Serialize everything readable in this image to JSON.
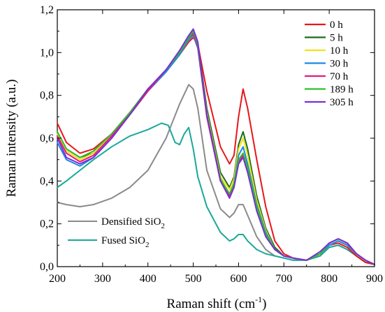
{
  "chart_data": {
    "type": "line",
    "xlabel": "Raman shift (cm",
    "xlabel_superscript": "-1",
    "xlabel_close": ")",
    "ylabel": "Raman intensity (a.u.)",
    "xlim": [
      200,
      900
    ],
    "ylim": [
      0,
      1.2
    ],
    "xticks": [
      200,
      300,
      400,
      500,
      600,
      700,
      800,
      900
    ],
    "yticks": [
      0,
      0.2,
      0.4,
      0.6,
      0.8,
      1.0,
      1.2
    ],
    "ytick_labels": [
      "0,0",
      "0,2",
      "0,4",
      "0,6",
      "0,8",
      "1,0",
      "1,2"
    ],
    "grid": false,
    "legend_position": "top-right",
    "series": [
      {
        "name": "0 h",
        "color": "#e8161b",
        "x": [
          200,
          220,
          250,
          280,
          320,
          360,
          400,
          440,
          470,
          490,
          500,
          510,
          530,
          560,
          580,
          590,
          600,
          610,
          620,
          640,
          660,
          680,
          700,
          720,
          750,
          780,
          800,
          820,
          840,
          860,
          880,
          900
        ],
        "y": [
          0.67,
          0.58,
          0.53,
          0.55,
          0.62,
          0.72,
          0.83,
          0.92,
          0.99,
          1.05,
          1.07,
          1.04,
          0.82,
          0.56,
          0.48,
          0.52,
          0.7,
          0.83,
          0.74,
          0.5,
          0.28,
          0.12,
          0.06,
          0.04,
          0.03,
          0.06,
          0.1,
          0.11,
          0.09,
          0.05,
          0.02,
          0.01
        ]
      },
      {
        "name": "5 h",
        "color": "#1b6b1e",
        "x": [
          200,
          220,
          250,
          280,
          320,
          360,
          400,
          440,
          470,
          490,
          500,
          510,
          530,
          560,
          580,
          590,
          600,
          610,
          620,
          640,
          660,
          680,
          700,
          720,
          750,
          780,
          800,
          820,
          840,
          860,
          880,
          900
        ],
        "y": [
          0.63,
          0.55,
          0.51,
          0.53,
          0.61,
          0.71,
          0.82,
          0.91,
          0.99,
          1.06,
          1.09,
          1.04,
          0.74,
          0.44,
          0.37,
          0.42,
          0.57,
          0.63,
          0.55,
          0.33,
          0.18,
          0.09,
          0.05,
          0.04,
          0.03,
          0.06,
          0.1,
          0.12,
          0.1,
          0.06,
          0.03,
          0.01
        ]
      },
      {
        "name": "10 h",
        "color": "#f2e21a",
        "x": [
          200,
          220,
          250,
          280,
          320,
          360,
          400,
          440,
          470,
          490,
          500,
          510,
          530,
          560,
          580,
          590,
          600,
          610,
          620,
          640,
          660,
          680,
          700,
          720,
          750,
          780,
          800,
          820,
          840,
          860,
          880,
          900
        ],
        "y": [
          0.62,
          0.54,
          0.5,
          0.53,
          0.61,
          0.71,
          0.82,
          0.91,
          0.99,
          1.06,
          1.08,
          1.03,
          0.72,
          0.42,
          0.36,
          0.41,
          0.55,
          0.6,
          0.52,
          0.31,
          0.17,
          0.08,
          0.05,
          0.04,
          0.03,
          0.06,
          0.1,
          0.12,
          0.1,
          0.06,
          0.03,
          0.01
        ]
      },
      {
        "name": "30 h",
        "color": "#1e88e5",
        "x": [
          200,
          220,
          250,
          280,
          320,
          360,
          400,
          440,
          470,
          490,
          500,
          510,
          530,
          560,
          580,
          590,
          600,
          610,
          620,
          640,
          660,
          680,
          700,
          720,
          750,
          780,
          800,
          820,
          840,
          860,
          880,
          900
        ],
        "y": [
          0.58,
          0.5,
          0.47,
          0.51,
          0.6,
          0.71,
          0.82,
          0.91,
          0.99,
          1.06,
          1.08,
          1.02,
          0.7,
          0.4,
          0.34,
          0.39,
          0.52,
          0.56,
          0.48,
          0.29,
          0.16,
          0.08,
          0.05,
          0.04,
          0.03,
          0.06,
          0.1,
          0.12,
          0.1,
          0.06,
          0.03,
          0.01
        ]
      },
      {
        "name": "70 h",
        "color": "#e6197b",
        "x": [
          200,
          220,
          250,
          280,
          320,
          360,
          400,
          440,
          470,
          490,
          500,
          510,
          530,
          560,
          580,
          590,
          600,
          610,
          620,
          640,
          660,
          680,
          700,
          720,
          750,
          780,
          800,
          820,
          840,
          860,
          880,
          900
        ],
        "y": [
          0.61,
          0.53,
          0.49,
          0.52,
          0.61,
          0.71,
          0.82,
          0.92,
          1.0,
          1.07,
          1.09,
          1.03,
          0.7,
          0.4,
          0.33,
          0.38,
          0.49,
          0.52,
          0.45,
          0.27,
          0.15,
          0.08,
          0.05,
          0.04,
          0.03,
          0.06,
          0.11,
          0.13,
          0.11,
          0.06,
          0.03,
          0.01
        ]
      },
      {
        "name": "189 h",
        "color": "#2fbf2f",
        "x": [
          200,
          220,
          250,
          280,
          320,
          360,
          400,
          440,
          470,
          490,
          500,
          510,
          530,
          560,
          580,
          590,
          600,
          610,
          620,
          640,
          660,
          680,
          700,
          720,
          750,
          780,
          800,
          820,
          840,
          860,
          880,
          900
        ],
        "y": [
          0.63,
          0.55,
          0.51,
          0.54,
          0.62,
          0.72,
          0.83,
          0.92,
          1.0,
          1.07,
          1.1,
          1.04,
          0.71,
          0.41,
          0.34,
          0.39,
          0.5,
          0.53,
          0.46,
          0.28,
          0.15,
          0.08,
          0.05,
          0.04,
          0.03,
          0.06,
          0.11,
          0.13,
          0.11,
          0.06,
          0.03,
          0.01
        ]
      },
      {
        "name": "305 h",
        "color": "#7b2fd4",
        "x": [
          200,
          220,
          250,
          280,
          320,
          360,
          400,
          440,
          470,
          490,
          500,
          510,
          530,
          560,
          580,
          590,
          600,
          610,
          620,
          640,
          660,
          680,
          700,
          720,
          750,
          780,
          800,
          820,
          840,
          860,
          880,
          900
        ],
        "y": [
          0.6,
          0.51,
          0.48,
          0.51,
          0.6,
          0.71,
          0.83,
          0.92,
          1.01,
          1.08,
          1.11,
          1.05,
          0.71,
          0.4,
          0.32,
          0.37,
          0.48,
          0.51,
          0.44,
          0.26,
          0.14,
          0.08,
          0.05,
          0.04,
          0.03,
          0.07,
          0.11,
          0.13,
          0.11,
          0.06,
          0.03,
          0.01
        ]
      },
      {
        "name": "Densified SiO",
        "color": "#8a8a8a",
        "x": [
          200,
          220,
          250,
          280,
          320,
          360,
          400,
          440,
          470,
          490,
          500,
          510,
          530,
          560,
          580,
          590,
          600,
          610,
          620,
          640,
          660,
          680,
          700,
          720,
          750,
          780,
          800,
          820,
          840,
          860,
          880,
          900
        ],
        "y": [
          0.3,
          0.29,
          0.28,
          0.29,
          0.32,
          0.37,
          0.45,
          0.6,
          0.76,
          0.85,
          0.83,
          0.74,
          0.45,
          0.27,
          0.23,
          0.25,
          0.29,
          0.29,
          0.24,
          0.14,
          0.08,
          0.05,
          0.04,
          0.03,
          0.03,
          0.05,
          0.09,
          0.1,
          0.08,
          0.05,
          0.02,
          0.01
        ]
      },
      {
        "name": "Fused SiO",
        "color": "#1aa89a",
        "x": [
          200,
          220,
          250,
          280,
          320,
          360,
          400,
          430,
          445,
          460,
          470,
          480,
          490,
          500,
          510,
          530,
          560,
          580,
          590,
          600,
          610,
          620,
          640,
          660,
          680,
          700,
          720,
          750,
          780,
          800,
          820,
          840,
          860,
          880,
          900
        ],
        "y": [
          0.37,
          0.4,
          0.45,
          0.5,
          0.56,
          0.61,
          0.64,
          0.67,
          0.66,
          0.58,
          0.57,
          0.62,
          0.65,
          0.55,
          0.42,
          0.28,
          0.16,
          0.12,
          0.13,
          0.15,
          0.15,
          0.12,
          0.08,
          0.06,
          0.05,
          0.04,
          0.03,
          0.03,
          0.05,
          0.09,
          0.1,
          0.08,
          0.05,
          0.02,
          0.01
        ]
      }
    ],
    "annotations": [
      {
        "text": "Densified SiO",
        "subscript": "2",
        "color": "#8a8a8a"
      },
      {
        "text": "Fused SiO",
        "subscript": "2",
        "color": "#1aa89a"
      }
    ]
  }
}
